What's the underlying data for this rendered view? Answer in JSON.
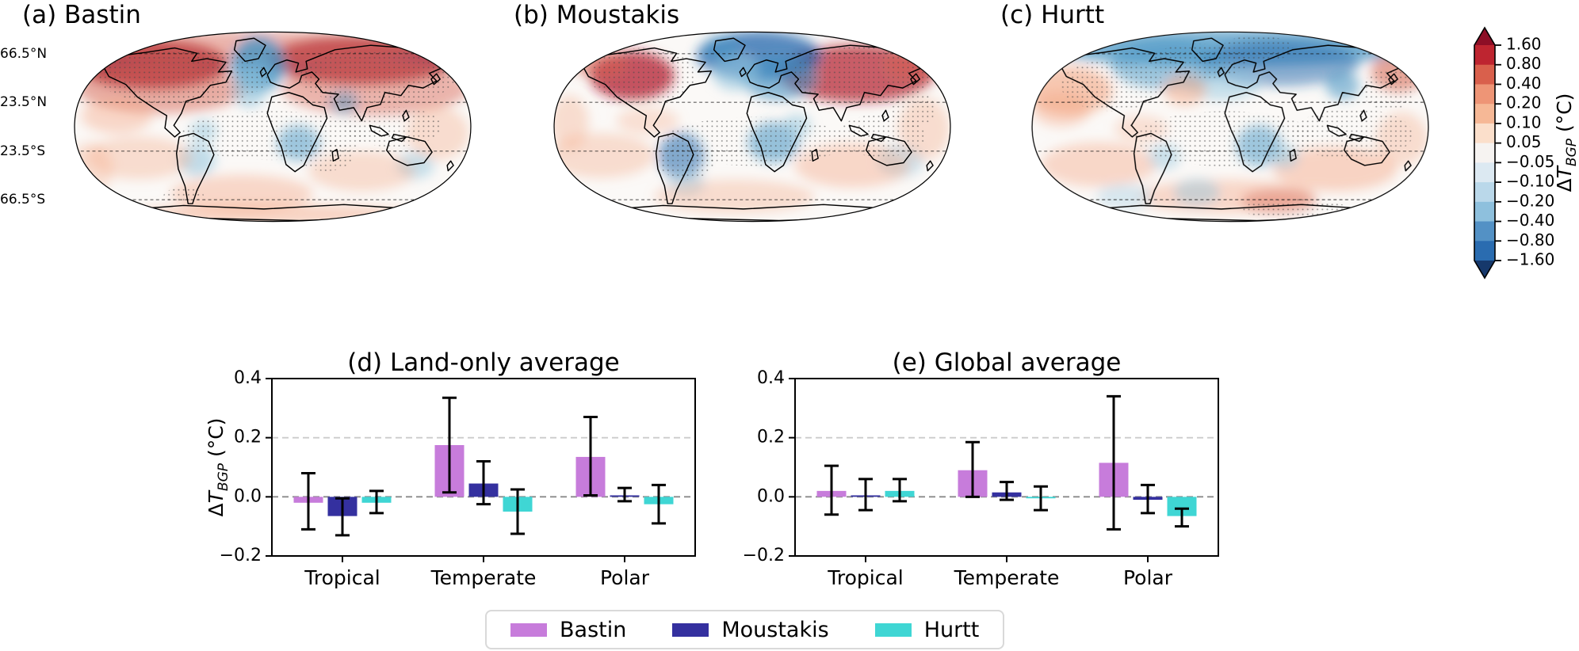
{
  "maps": {
    "panels": [
      {
        "id": "a",
        "title": "(a) Bastin"
      },
      {
        "id": "b",
        "title": "(b) Moustakis"
      },
      {
        "id": "c",
        "title": "(c) Hurtt"
      }
    ],
    "lat_labels": [
      "66.5°N",
      "23.5°N",
      "23.5°S",
      "66.5°S"
    ]
  },
  "colorbar": {
    "ticks": [
      "1.60",
      "0.80",
      "0.40",
      "0.20",
      "0.10",
      "0.05",
      "−0.05",
      "−0.10",
      "−0.20",
      "−0.40",
      "−0.80",
      "−1.60"
    ],
    "segment_colors": [
      "#be2530",
      "#d9604c",
      "#ee9576",
      "#f6b896",
      "#fbdfcb",
      "#f6f3f1",
      "#dce9f2",
      "#bad8ea",
      "#8ec0dd",
      "#5391c5",
      "#2a6cb0"
    ],
    "over_color": "#8d0f26",
    "under_color": "#16386b",
    "title": {
      "delta": "Δ",
      "symbol": "T",
      "sub": "BGP",
      "units": "(°C)"
    }
  },
  "legend": {
    "items": [
      {
        "label": "Bastin",
        "color": "#c77cdb"
      },
      {
        "label": "Moustakis",
        "color": "#34309f"
      },
      {
        "label": "Hurtt",
        "color": "#3fd6d4"
      }
    ]
  },
  "chart_data": [
    {
      "type": "heatmap",
      "panel": "a",
      "title": "(a) Bastin",
      "variable": "ΔT_BGP",
      "units": "°C",
      "colormap": "RdBu_r diverging, discrete",
      "value_range": [
        -1.6,
        1.6
      ],
      "latitude_lines": [
        "66.5°N",
        "23.5°N",
        "23.5°S",
        "66.5°S"
      ],
      "notes": "Robinson-projection world map; strong warming (dark red) over boreal North America and Siberia, cooling (blue) over North Atlantic, scattered cool patches in tropics; stippling marks significant regions"
    },
    {
      "type": "heatmap",
      "panel": "b",
      "title": "(b) Moustakis",
      "variable": "ΔT_BGP",
      "units": "°C",
      "colormap": "RdBu_r diverging, discrete",
      "value_range": [
        -1.6,
        1.6
      ],
      "latitude_lines": [
        "66.5°N",
        "23.5°N",
        "23.5°S",
        "66.5°S"
      ],
      "notes": "warming over western North America and central/eastern Siberia, cooling over northern Europe/Arctic Atlantic and tropical South America/Africa; stippling marks significant regions"
    },
    {
      "type": "heatmap",
      "panel": "c",
      "title": "(c) Hurtt",
      "variable": "ΔT_BGP",
      "units": "°C",
      "colormap": "RdBu_r diverging, discrete",
      "value_range": [
        -1.6,
        1.6
      ],
      "latitude_lines": [
        "66.5°N",
        "23.5°N",
        "23.5°S",
        "66.5°S"
      ],
      "notes": "cooling (blue) across Arctic high latitudes, mild warming over midlatitude oceans, cool patches over tropical Africa; stippling marks significant regions"
    },
    {
      "type": "bar",
      "panel": "d",
      "title": "(d) Land-only average",
      "categories": [
        "Tropical",
        "Temperate",
        "Polar"
      ],
      "ylabel": "ΔT_BGP (°C)",
      "ylim": [
        -0.2,
        0.4
      ],
      "yticks": [
        -0.2,
        0.0,
        0.2,
        0.4
      ],
      "gridlines": [
        0.0,
        0.2
      ],
      "legend_position": "below figure",
      "series": [
        {
          "name": "Bastin",
          "color": "#c77cdb",
          "values": [
            -0.02,
            0.175,
            0.135
          ],
          "error_low": [
            -0.11,
            0.015,
            0.005
          ],
          "error_high": [
            0.08,
            0.335,
            0.27
          ]
        },
        {
          "name": "Moustakis",
          "color": "#34309f",
          "values": [
            -0.065,
            0.045,
            0.005
          ],
          "error_low": [
            -0.13,
            -0.025,
            -0.015
          ],
          "error_high": [
            -0.005,
            0.12,
            0.03
          ]
        },
        {
          "name": "Hurtt",
          "color": "#3fd6d4",
          "values": [
            -0.02,
            -0.05,
            -0.025
          ],
          "error_low": [
            -0.055,
            -0.125,
            -0.09
          ],
          "error_high": [
            0.02,
            0.025,
            0.04
          ]
        }
      ]
    },
    {
      "type": "bar",
      "panel": "e",
      "title": "(e) Global average",
      "categories": [
        "Tropical",
        "Temperate",
        "Polar"
      ],
      "ylabel": "",
      "ylim": [
        -0.2,
        0.4
      ],
      "yticks": [
        -0.2,
        0.0,
        0.2,
        0.4
      ],
      "gridlines": [
        0.0,
        0.2
      ],
      "legend_position": "below figure",
      "series": [
        {
          "name": "Bastin",
          "color": "#c77cdb",
          "values": [
            0.02,
            0.09,
            0.115
          ],
          "error_low": [
            -0.06,
            0.0,
            -0.11
          ],
          "error_high": [
            0.105,
            0.185,
            0.34
          ]
        },
        {
          "name": "Moustakis",
          "color": "#34309f",
          "values": [
            0.005,
            0.015,
            -0.01
          ],
          "error_low": [
            -0.045,
            -0.01,
            -0.055
          ],
          "error_high": [
            0.06,
            0.05,
            0.04
          ]
        },
        {
          "name": "Hurtt",
          "color": "#3fd6d4",
          "values": [
            0.02,
            -0.005,
            -0.065
          ],
          "error_low": [
            -0.015,
            -0.045,
            -0.1
          ],
          "error_high": [
            0.06,
            0.035,
            -0.04
          ]
        }
      ]
    }
  ]
}
